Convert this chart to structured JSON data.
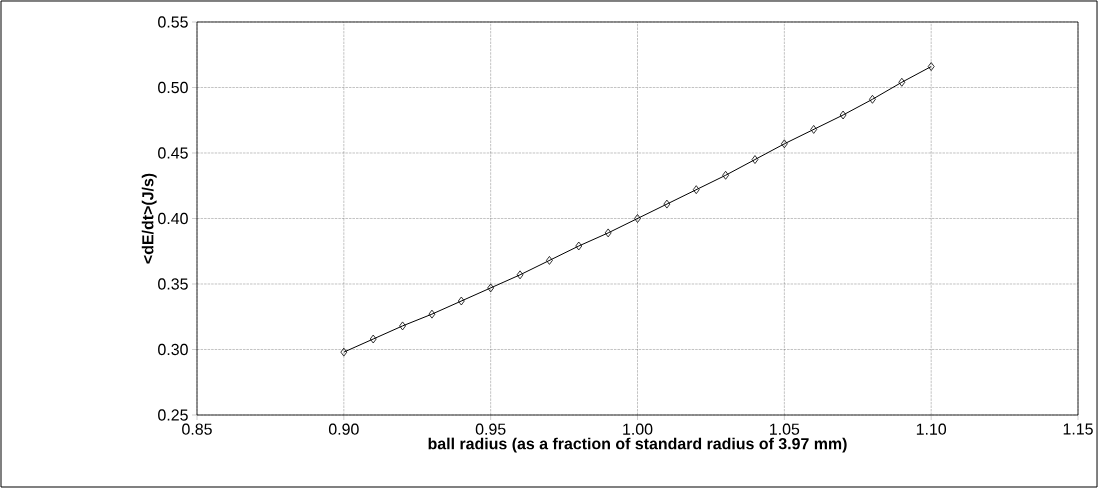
{
  "chart_data": {
    "type": "line",
    "xlabel": "ball radius (as a fraction of  standard radius of 3.97 mm)",
    "ylabel": "<dE/dt>(J/s)",
    "x": [
      0.9,
      0.91,
      0.92,
      0.93,
      0.94,
      0.95,
      0.96,
      0.97,
      0.98,
      0.99,
      1.0,
      1.01,
      1.02,
      1.03,
      1.04,
      1.05,
      1.06,
      1.07,
      1.08,
      1.09,
      1.1
    ],
    "series": [
      {
        "color": "#000000",
        "values": [
          0.298,
          0.308,
          0.318,
          0.327,
          0.337,
          0.347,
          0.357,
          0.368,
          0.379,
          0.389,
          0.4,
          0.411,
          0.422,
          0.433,
          0.445,
          0.457,
          0.468,
          0.479,
          0.491,
          0.504,
          0.516
        ]
      }
    ],
    "xlim": [
      0.85,
      1.15
    ],
    "ylim": [
      0.25,
      0.55
    ],
    "xticks": [
      {
        "value": 0.85,
        "label": "0.85"
      },
      {
        "value": 0.9,
        "label": "0.90"
      },
      {
        "value": 0.95,
        "label": "0.95"
      },
      {
        "value": 1.0,
        "label": "1.00"
      },
      {
        "value": 1.05,
        "label": "1.05"
      },
      {
        "value": 1.1,
        "label": "1.10"
      },
      {
        "value": 1.15,
        "label": "1.15"
      }
    ],
    "yticks": [
      {
        "value": 0.25,
        "label": "0.25"
      },
      {
        "value": 0.3,
        "label": "0.30"
      },
      {
        "value": 0.35,
        "label": "0.35"
      },
      {
        "value": 0.4,
        "label": "0.40"
      },
      {
        "value": 0.45,
        "label": "0.45"
      },
      {
        "value": 0.5,
        "label": "0.50"
      },
      {
        "value": 0.55,
        "label": "0.55"
      }
    ],
    "grid": true,
    "marker": "diamond",
    "line_style": "solid"
  }
}
